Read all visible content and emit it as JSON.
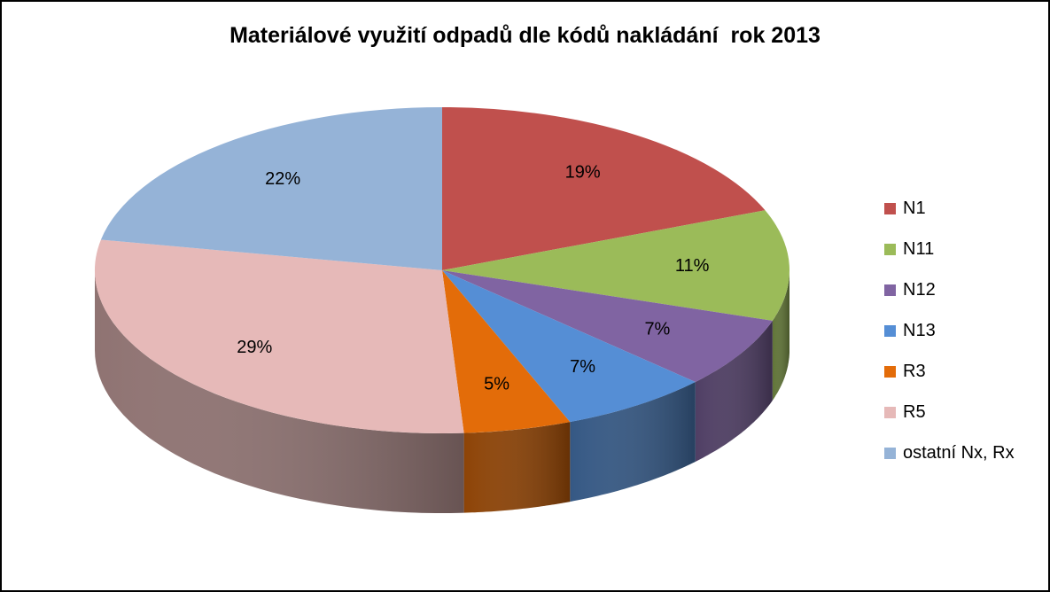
{
  "chart_data": {
    "type": "pie",
    "title": "Materiálové využití odpadů dle kódů nakládání  rok 2013",
    "slices": [
      {
        "name": "N1",
        "value": 19,
        "label": "19%",
        "color": "#C0504D"
      },
      {
        "name": "N11",
        "value": 11,
        "label": "11%",
        "color": "#9BBB59"
      },
      {
        "name": "N12",
        "value": 7,
        "label": "7%",
        "color": "#8064A2"
      },
      {
        "name": "N13",
        "value": 7,
        "label": "7%",
        "color": "#558ED5"
      },
      {
        "name": "R3",
        "value": 5,
        "label": "5%",
        "color": "#E36C09"
      },
      {
        "name": "R5",
        "value": 29,
        "label": "29%",
        "color": "#E6B9B8"
      },
      {
        "name": "ostatní Nx, Rx",
        "value": 22,
        "label": "22%",
        "color": "#95B3D7"
      }
    ],
    "legend_position": "right",
    "style": "3d"
  }
}
